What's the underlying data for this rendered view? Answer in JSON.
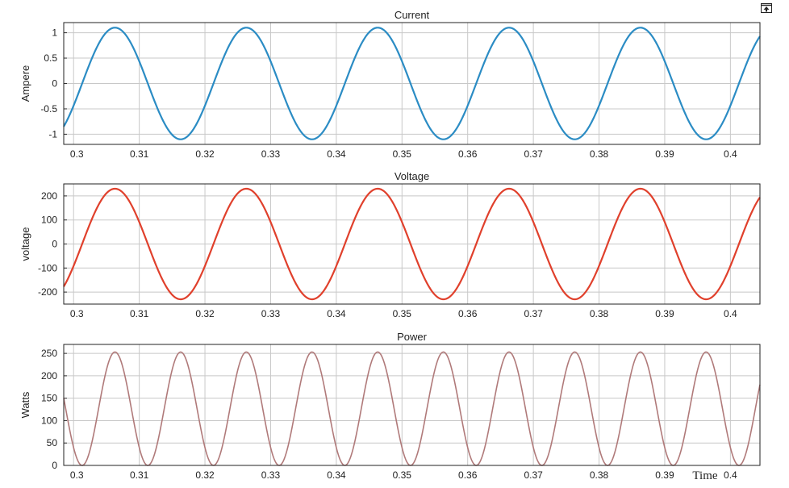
{
  "corner_icon": "restore-axes-icon",
  "chart_data": [
    {
      "type": "line",
      "title": "Current",
      "xlabel": "",
      "ylabel": "Ampere",
      "xlim": [
        0.2985,
        0.4045
      ],
      "ylim": [
        -1.2,
        1.2
      ],
      "xticks": [
        "0.3",
        "0.31",
        "0.32",
        "0.33",
        "0.34",
        "0.35",
        "0.36",
        "0.37",
        "0.38",
        "0.39",
        "0.4"
      ],
      "yticks": [
        "1",
        "0.5",
        "0",
        "-0.5",
        "-1"
      ],
      "grid": true,
      "series": [
        {
          "color": "#2b8cc4",
          "waveform": "sine",
          "amplitude": 1.1,
          "frequency_hz": 50,
          "peak_times": [
            0.3063,
            0.3263,
            0.3463,
            0.3663,
            0.3863
          ],
          "trough_times": [
            0.3163,
            0.3363,
            0.3563,
            0.3763,
            0.3963
          ]
        }
      ]
    },
    {
      "type": "line",
      "title": "Voltage",
      "xlabel": "",
      "ylabel": "voltage",
      "xlim": [
        0.2985,
        0.4045
      ],
      "ylim": [
        -250,
        250
      ],
      "xticks": [
        "0.3",
        "0.31",
        "0.32",
        "0.33",
        "0.34",
        "0.35",
        "0.36",
        "0.37",
        "0.38",
        "0.39",
        "0.4"
      ],
      "yticks": [
        "200",
        "100",
        "0",
        "-100",
        "-200"
      ],
      "grid": true,
      "series": [
        {
          "color": "#e0402c",
          "waveform": "sine",
          "amplitude": 230,
          "frequency_hz": 50,
          "peak_times": [
            0.3063,
            0.3263,
            0.3463,
            0.3663,
            0.3863
          ],
          "trough_times": [
            0.3163,
            0.3363,
            0.3563,
            0.3763,
            0.3963
          ]
        }
      ]
    },
    {
      "type": "line",
      "title": "Power",
      "xlabel": "Time",
      "ylabel": "Watts",
      "xlim": [
        0.2985,
        0.4045
      ],
      "ylim": [
        0,
        270
      ],
      "xticks": [
        "0.3",
        "0.31",
        "0.32",
        "0.33",
        "0.34",
        "0.35",
        "0.36",
        "0.37",
        "0.38",
        "0.39",
        "0.4"
      ],
      "yticks": [
        "250",
        "200",
        "150",
        "100",
        "50",
        "0"
      ],
      "grid": true,
      "series": [
        {
          "color": "#b07a7a",
          "waveform": "sine-squared",
          "peak_value": 253,
          "frequency_hz": 100,
          "peak_times": [
            0.3063,
            0.3163,
            0.3263,
            0.3363,
            0.3463,
            0.3563,
            0.3663,
            0.3763,
            0.3863,
            0.3963
          ],
          "zero_times": [
            0.3013,
            0.3113,
            0.3213,
            0.3313,
            0.3413,
            0.3513,
            0.3613,
            0.3713,
            0.3813,
            0.3913,
            0.4013
          ]
        }
      ]
    }
  ]
}
